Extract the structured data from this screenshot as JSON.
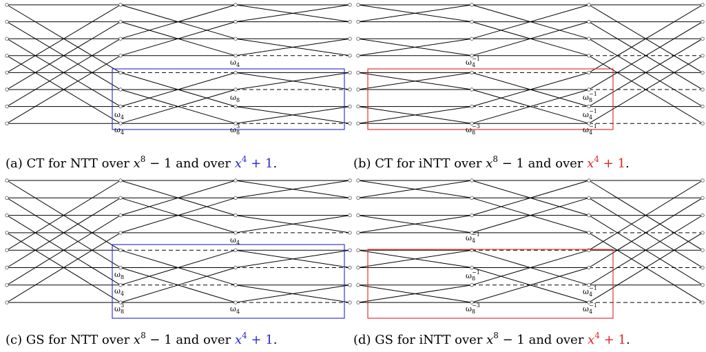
{
  "highlight_colors": {
    "ntt": "#2424d8",
    "intt": "#e02020"
  },
  "panels": [
    {
      "id": "a",
      "caption": {
        "prefix": "(a) CT for NTT over ",
        "x": "x",
        "exp": "8",
        "mid": " − 1 and over ",
        "x2": "x",
        "exp2": "4",
        "tail": " + 1",
        "end": ".",
        "color_key": "ntt"
      },
      "labels": [
        {
          "base": "ω",
          "sub": "4",
          "sup": ""
        },
        {
          "base": "ω",
          "sub": "8",
          "sup": ""
        },
        {
          "base": "ω",
          "sub": "4",
          "sup": ""
        },
        {
          "base": "ω",
          "sub": "4",
          "sup": ""
        },
        {
          "base": "ω",
          "sub": "8",
          "sup": "3"
        }
      ]
    },
    {
      "id": "b",
      "caption": {
        "prefix": "(b) CT for iNTT over ",
        "x": "x",
        "exp": "8",
        "mid": " − 1 and over ",
        "x2": "x",
        "exp2": "4",
        "tail": " + 1",
        "end": ".",
        "color_key": "intt"
      },
      "labels": [
        {
          "base": "ω",
          "sub": "4",
          "sup": "−1"
        },
        {
          "base": "ω",
          "sub": "8",
          "sup": "−1"
        },
        {
          "base": "ω",
          "sub": "4",
          "sup": "−1"
        },
        {
          "base": "ω",
          "sub": "4",
          "sup": "−1"
        },
        {
          "base": "ω",
          "sub": "8",
          "sup": "−3"
        }
      ]
    },
    {
      "id": "c",
      "caption": {
        "prefix": "(c) GS for NTT over ",
        "x": "x",
        "exp": "8",
        "mid": " − 1 and over ",
        "x2": "x",
        "exp2": "4",
        "tail": " + 1",
        "end": ".",
        "color_key": "ntt"
      },
      "labels": [
        {
          "base": "ω",
          "sub": "4",
          "sup": ""
        },
        {
          "base": "ω",
          "sub": "8",
          "sup": ""
        },
        {
          "base": "ω",
          "sub": "4",
          "sup": ""
        },
        {
          "base": "ω",
          "sub": "8",
          "sup": "3"
        },
        {
          "base": "ω",
          "sub": "4",
          "sup": ""
        }
      ]
    },
    {
      "id": "d",
      "caption": {
        "prefix": "(d) GS for iNTT over ",
        "x": "x",
        "exp": "8",
        "mid": " − 1 and over ",
        "x2": "x",
        "exp2": "4",
        "tail": " + 1",
        "end": ".",
        "color_key": "intt"
      },
      "labels": [
        {
          "base": "ω",
          "sub": "4",
          "sup": "−1"
        },
        {
          "base": "ω",
          "sub": "8",
          "sup": "−1"
        },
        {
          "base": "ω",
          "sub": "8",
          "sup": "−3"
        },
        {
          "base": "ω",
          "sub": "4",
          "sup": "−1"
        },
        {
          "base": "ω",
          "sub": "4",
          "sup": "−1"
        }
      ]
    }
  ]
}
